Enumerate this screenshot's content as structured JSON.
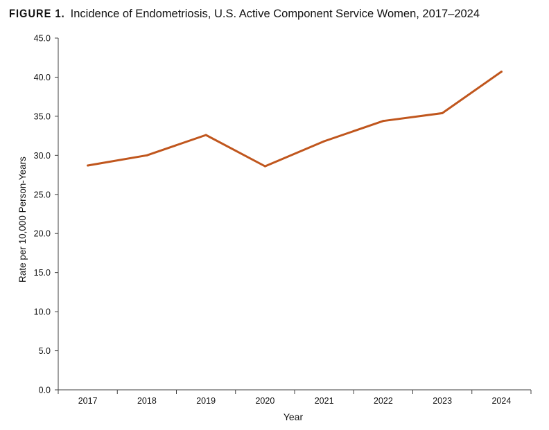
{
  "figure": {
    "label": "FIGURE 1.",
    "title": "Incidence of Endometriosis, U.S. Active Component Service Women, 2017–2024"
  },
  "colors": {
    "series_line": "#c0561d",
    "axis": "#404040",
    "text": "#111111"
  },
  "chart_data": {
    "type": "line",
    "title": "Incidence of Endometriosis, U.S. Active Component Service Women, 2017–2024",
    "xlabel": "Year",
    "ylabel": "Rate per 10,000 Person-Years",
    "categories": [
      "2017",
      "2018",
      "2019",
      "2020",
      "2021",
      "2022",
      "2023",
      "2024"
    ],
    "series": [
      {
        "values": [
          28.7,
          30.0,
          32.6,
          28.6,
          31.8,
          34.4,
          35.4,
          40.7
        ]
      }
    ],
    "ylim": [
      0,
      45
    ],
    "yticks": [
      0,
      5,
      10,
      15,
      20,
      25,
      30,
      35,
      40,
      45
    ],
    "ytick_labels": [
      "0.0",
      "5.0",
      "10.0",
      "15.0",
      "20.0",
      "25.0",
      "30.0",
      "35.0",
      "40.0",
      "45.0"
    ],
    "grid": false,
    "legend": "none"
  }
}
